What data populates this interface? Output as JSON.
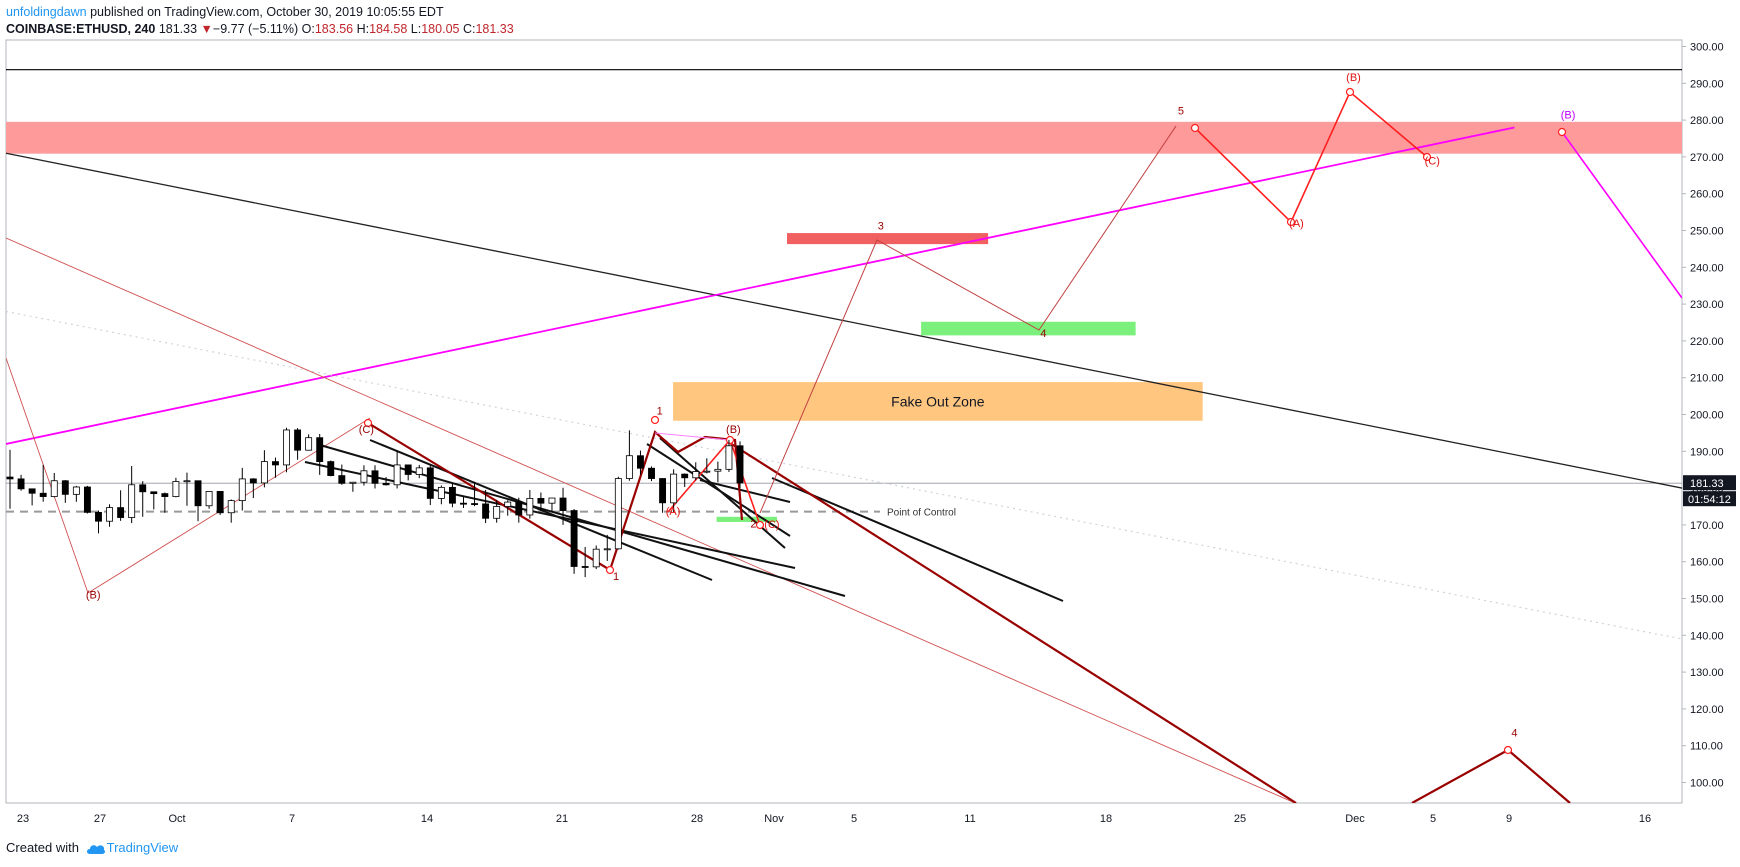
{
  "header": {
    "author": "unfoldingdawn",
    "published_text": "published on TradingView.com, October 30, 2019 10:05:55 EDT",
    "symbol": "COINBASE:ETHUSD, 240",
    "last": "181.33",
    "change_arrow": "▼",
    "change": "−9.77 (−5.11%)",
    "o_label": "O:",
    "o_value": "183.56",
    "h_label": "H:",
    "h_value": "184.58",
    "l_label": "L:",
    "l_value": "180.05",
    "c_label": "C:",
    "c_value": "181.33"
  },
  "footer": {
    "created_with": "Created with",
    "brand": "TradingView",
    "logo_icon": "tradingview-logo-icon"
  },
  "colors": {
    "red_zone": "#ff9a9a",
    "green_zone": "#7cf07c",
    "orange_zone": "#ffc680",
    "magenta": "#ff00ff",
    "dark_red": "#990000",
    "red": "#ff2020",
    "up": "#ffffff",
    "down": "#000000"
  },
  "chart_data": {
    "type": "candlestick",
    "title": "COINBASE:ETHUSD, 240",
    "x_tick_labels": [
      "23",
      "27",
      "Oct",
      "7",
      "14",
      "21",
      "28",
      "Nov",
      "5",
      "11",
      "18",
      "25",
      "Dec",
      "5",
      "9",
      "16"
    ],
    "y_ticks": [
      "100.00",
      "110.00",
      "120.00",
      "130.00",
      "140.00",
      "150.00",
      "160.00",
      "170.00",
      "180.00",
      "190.00",
      "200.00",
      "210.00",
      "220.00",
      "230.00",
      "240.00",
      "250.00",
      "260.00",
      "270.00",
      "280.00",
      "290.00",
      "300.00"
    ],
    "ylim": [
      95.5,
      302
    ],
    "last_price_label": "181.33",
    "countdown_label": "01:54:12",
    "horizontal_line": 293.7,
    "last_price_line": 181.33,
    "point_of_control": {
      "label": "Point of Control",
      "value": 173.6
    },
    "zones": [
      {
        "type": "supply",
        "x0": 0,
        "x1": 1.42,
        "y0": 271,
        "y1": 279.4
      },
      {
        "type": "target",
        "x0": 0.466,
        "x1": 0.586,
        "y0": 246.3,
        "y1": 249.3
      },
      {
        "type": "support",
        "x0": 0.546,
        "x1": 0.674,
        "y0": 221.5,
        "y1": 225.2
      },
      {
        "type": "fake-out",
        "label": "Fake Out Zone",
        "x0": 0.398,
        "x1": 0.714,
        "y0": 198.3,
        "y1": 208.8
      },
      {
        "type": "small-support",
        "x0": 0.424,
        "x1": 0.46,
        "y0": 170.8,
        "y1": 172.2
      }
    ],
    "trend_lines": [
      {
        "name": "long-term resistance",
        "points": [
          [
            0,
            271
          ],
          [
            1,
            180
          ]
        ]
      },
      {
        "name": "magenta trend",
        "points": [
          [
            0,
            192
          ],
          [
            0.9,
            278
          ]
        ]
      },
      {
        "name": "dotted projection",
        "points": [
          [
            0,
            228
          ],
          [
            1,
            139
          ]
        ]
      }
    ],
    "candles": [
      [
        183.0,
        182.5,
        190.4,
        174.4
      ],
      [
        182.5,
        179.8,
        183.6,
        179.3
      ],
      [
        179.8,
        178.6,
        179.8,
        175.3
      ],
      [
        178.6,
        177.7,
        186.3,
        176.3
      ],
      [
        177.7,
        182.0,
        184.1,
        177.5
      ],
      [
        182.0,
        178.3,
        182.2,
        176.0
      ],
      [
        178.3,
        180.3,
        180.6,
        176.3
      ],
      [
        180.3,
        173.4,
        180.6,
        173.1
      ],
      [
        173.4,
        171.0,
        173.9,
        167.7
      ],
      [
        171.0,
        174.7,
        175.6,
        169.5
      ],
      [
        174.7,
        172.0,
        179.4,
        171.1
      ],
      [
        172.0,
        180.9,
        186.0,
        170.5
      ],
      [
        180.9,
        179.0,
        181.9,
        172.2
      ],
      [
        179.0,
        178.5,
        179.0,
        174.2
      ],
      [
        178.5,
        177.7,
        178.8,
        173.3
      ],
      [
        177.7,
        181.8,
        182.8,
        177.5
      ],
      [
        181.8,
        182.0,
        184.2,
        175.2
      ],
      [
        182.0,
        175.2,
        182.0,
        171.0
      ],
      [
        175.2,
        179.1,
        179.1,
        174.4
      ],
      [
        179.1,
        173.3,
        179.1,
        172.7
      ],
      [
        173.3,
        176.6,
        176.9,
        170.6
      ],
      [
        176.6,
        182.5,
        185.5,
        173.9
      ],
      [
        182.5,
        181.4,
        182.7,
        177.3
      ],
      [
        181.4,
        187.2,
        190.3,
        180.2
      ],
      [
        187.2,
        186.3,
        188.3,
        182.8
      ],
      [
        186.3,
        195.8,
        196.4,
        184.3
      ],
      [
        195.8,
        190.3,
        196.3,
        187.7
      ],
      [
        190.3,
        193.7,
        194.6,
        190.2
      ],
      [
        193.7,
        187.2,
        194.7,
        183.6
      ],
      [
        187.2,
        183.4,
        187.5,
        183.2
      ],
      [
        183.4,
        181.3,
        186.4,
        180.9
      ],
      [
        181.3,
        181.6,
        181.7,
        179.0
      ],
      [
        181.6,
        184.7,
        186.2,
        180.7
      ],
      [
        184.7,
        181.3,
        186.2,
        179.9
      ],
      [
        181.3,
        180.9,
        183.0,
        180.7
      ],
      [
        180.9,
        186.3,
        190.2,
        179.9
      ],
      [
        186.3,
        183.7,
        186.4,
        182.1
      ],
      [
        183.7,
        185.5,
        186.3,
        182.7
      ],
      [
        185.5,
        177.2,
        186.1,
        175.4
      ],
      [
        177.2,
        180.2,
        180.7,
        175.6
      ],
      [
        180.2,
        175.9,
        181.4,
        174.8
      ],
      [
        175.9,
        175.8,
        177.6,
        174.6
      ],
      [
        175.8,
        175.7,
        181.7,
        175.1
      ],
      [
        175.7,
        171.8,
        179.5,
        170.5
      ],
      [
        171.8,
        175.0,
        176.8,
        170.6
      ],
      [
        175.0,
        176.2,
        176.7,
        172.5
      ],
      [
        176.2,
        172.7,
        177.4,
        170.6
      ],
      [
        172.7,
        177.2,
        179.5,
        171.7
      ],
      [
        177.2,
        175.9,
        178.8,
        173.8
      ],
      [
        175.9,
        177.3,
        177.3,
        173.5
      ],
      [
        177.3,
        173.9,
        180.1,
        170.0
      ],
      [
        173.9,
        158.7,
        174.3,
        156.7
      ],
      [
        158.7,
        158.6,
        164.0,
        155.8
      ],
      [
        158.6,
        163.4,
        164.4,
        158.0
      ],
      [
        163.4,
        163.5,
        167.3,
        160.2
      ],
      [
        163.5,
        182.6,
        183.1,
        163.3
      ],
      [
        182.6,
        188.8,
        195.7,
        182.0
      ],
      [
        188.8,
        185.4,
        190.2,
        183.6
      ],
      [
        185.4,
        182.6,
        185.9,
        181.9
      ],
      [
        182.6,
        176.0,
        182.7,
        173.3
      ],
      [
        176.0,
        183.8,
        185.1,
        173.5
      ],
      [
        183.8,
        182.8,
        184.0,
        180.3
      ],
      [
        182.8,
        184.5,
        187.0,
        182.1
      ],
      [
        184.5,
        184.6,
        188.1,
        184.0
      ],
      [
        184.6,
        185.1,
        187.2,
        181.6
      ],
      [
        185.1,
        191.5,
        193.1,
        184.4
      ],
      [
        191.5,
        181.4,
        192.7,
        180.0
      ]
    ],
    "wave_labels": [
      {
        "text": "(C)",
        "x": 0.215,
        "y": 195,
        "color": "dark_red"
      },
      {
        "text": "(B)",
        "x": 0.052,
        "y": 150,
        "color": "dark_red"
      },
      {
        "text": "1",
        "x": 0.39,
        "y": 200,
        "color": "dark_red"
      },
      {
        "text": "(B)",
        "x": 0.434,
        "y": 195,
        "color": "dark_red"
      },
      {
        "text": "(A)",
        "x": 0.398,
        "y": 172.7,
        "color": "red"
      },
      {
        "text": "2",
        "x": 0.446,
        "y": 169.3,
        "color": "dark_red"
      },
      {
        "text": "(C)",
        "x": 0.457,
        "y": 169.2,
        "color": "red"
      },
      {
        "text": "1",
        "x": 0.364,
        "y": 155,
        "color": "dark_red"
      },
      {
        "text": "3",
        "x": 0.522,
        "y": 250.3,
        "color": "dark_red"
      },
      {
        "text": "4",
        "x": 0.619,
        "y": 221,
        "color": "dark_red"
      },
      {
        "text": "5",
        "x": 0.701,
        "y": 281.5,
        "color": "dark_red"
      },
      {
        "text": "(B)",
        "x": 0.804,
        "y": 290.6,
        "color": "red"
      },
      {
        "text": "(A)",
        "x": 0.77,
        "y": 251,
        "color": "red"
      },
      {
        "text": "(C)",
        "x": 0.851,
        "y": 268,
        "color": "red"
      },
      {
        "text": "(B)",
        "x": 0.932,
        "y": 280.5,
        "color": "magenta"
      },
      {
        "text": "4",
        "x": 0.9,
        "y": 112.5,
        "color": "dark_red"
      }
    ]
  }
}
